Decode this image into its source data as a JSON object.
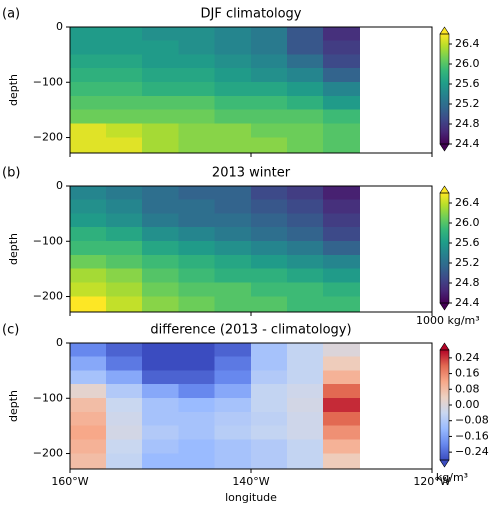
{
  "chart_data": [
    {
      "type": "heatmap",
      "panel_label": "(a)",
      "title": "DJF climatology",
      "ylabel": "depth",
      "colormap": "viridis",
      "x_edges": [
        -160,
        -156,
        -152,
        -148,
        -144,
        -140,
        -136,
        -132,
        -128
      ],
      "y_edges": [
        0,
        -25,
        -50,
        -75,
        -100,
        -125,
        -150,
        -175,
        -200,
        -228
      ],
      "values": [
        [
          25.6,
          25.6,
          25.5,
          25.5,
          25.4,
          25.3,
          25.0,
          24.7
        ],
        [
          25.6,
          25.6,
          25.6,
          25.5,
          25.4,
          25.3,
          25.0,
          24.8
        ],
        [
          25.7,
          25.7,
          25.6,
          25.6,
          25.5,
          25.4,
          25.2,
          24.9
        ],
        [
          25.8,
          25.8,
          25.7,
          25.7,
          25.6,
          25.5,
          25.4,
          25.1
        ],
        [
          25.9,
          25.9,
          25.8,
          25.8,
          25.7,
          25.7,
          25.6,
          25.4
        ],
        [
          26.0,
          26.0,
          26.0,
          26.0,
          25.9,
          25.9,
          25.8,
          25.6
        ],
        [
          26.1,
          26.1,
          26.1,
          26.1,
          26.0,
          26.0,
          26.0,
          25.9
        ],
        [
          26.5,
          26.4,
          26.3,
          26.2,
          26.2,
          26.1,
          26.1,
          26.0
        ],
        [
          26.5,
          26.5,
          26.3,
          26.2,
          26.2,
          26.2,
          26.1,
          26.0
        ]
      ],
      "xlim": [
        -160,
        -120
      ],
      "ylim": [
        -228,
        0
      ],
      "yticks": [
        0,
        {
          "value": -100,
          "label": "−100"
        },
        {
          "value": -200,
          "label": "−200"
        }
      ],
      "colorbar": {
        "clim": [
          24.4,
          26.6
        ],
        "extend": "both",
        "ticks": [
          26.4,
          {
            "value": 26.0,
            "label": "26.0"
          },
          25.6,
          25.2,
          24.8,
          24.4
        ]
      }
    },
    {
      "type": "heatmap",
      "panel_label": "(b)",
      "title": "2013 winter",
      "ylabel": "depth",
      "colormap": "viridis",
      "x_edges": [
        -160,
        -156,
        -152,
        -148,
        -144,
        -140,
        -136,
        -132,
        -128
      ],
      "y_edges": [
        0,
        -25,
        -50,
        -75,
        -100,
        -125,
        -150,
        -175,
        -200,
        -228
      ],
      "values": [
        [
          25.4,
          25.3,
          25.2,
          25.1,
          25.1,
          24.9,
          24.8,
          24.6
        ],
        [
          25.5,
          25.4,
          25.2,
          25.2,
          25.1,
          25.0,
          24.9,
          24.7
        ],
        [
          25.6,
          25.5,
          25.3,
          25.2,
          25.2,
          25.1,
          25.0,
          24.8
        ],
        [
          25.8,
          25.7,
          25.5,
          25.4,
          25.3,
          25.2,
          25.1,
          24.9
        ],
        [
          25.9,
          25.9,
          25.7,
          25.6,
          25.5,
          25.4,
          25.3,
          25.1
        ],
        [
          26.1,
          26.0,
          25.9,
          25.8,
          25.7,
          25.6,
          25.5,
          25.4
        ],
        [
          26.3,
          26.2,
          26.0,
          25.9,
          25.8,
          25.8,
          25.7,
          25.6
        ],
        [
          26.4,
          26.3,
          26.1,
          26.0,
          26.0,
          25.9,
          25.9,
          25.8
        ],
        [
          26.6,
          26.4,
          26.2,
          26.1,
          26.0,
          26.0,
          25.9,
          25.9
        ]
      ],
      "xlim": [
        -160,
        -120
      ],
      "ylim": [
        -228,
        0
      ],
      "yticks": [
        0,
        {
          "value": -100,
          "label": "−100"
        },
        {
          "value": -200,
          "label": "−200"
        }
      ],
      "colorbar": {
        "clim": [
          24.4,
          26.6
        ],
        "extend": "both",
        "label": "1000 kg/m³",
        "ticks": [
          26.4,
          {
            "value": 26.0,
            "label": "26.0"
          },
          25.6,
          25.2,
          24.8,
          24.4
        ]
      }
    },
    {
      "type": "heatmap",
      "panel_label": "(c)",
      "title": "difference (2013 - climatology)",
      "ylabel": "depth",
      "xlabel": "longitude",
      "colormap": "coolwarm",
      "x_edges": [
        -160,
        -156,
        -152,
        -148,
        -144,
        -140,
        -136,
        -132,
        -128
      ],
      "y_edges": [
        0,
        -25,
        -50,
        -75,
        -100,
        -125,
        -150,
        -175,
        -200,
        -228
      ],
      "values": [
        [
          -0.2,
          -0.25,
          -0.3,
          -0.3,
          -0.25,
          -0.1,
          -0.05,
          0.0
        ],
        [
          -0.15,
          -0.22,
          -0.28,
          -0.28,
          -0.22,
          -0.1,
          -0.05,
          0.05
        ],
        [
          -0.1,
          -0.15,
          -0.25,
          -0.25,
          -0.2,
          -0.08,
          -0.05,
          0.1
        ],
        [
          0.02,
          -0.08,
          -0.15,
          -0.2,
          -0.15,
          -0.05,
          -0.03,
          0.2
        ],
        [
          0.08,
          -0.04,
          -0.1,
          -0.12,
          -0.1,
          -0.05,
          -0.02,
          0.25
        ],
        [
          0.1,
          -0.03,
          -0.1,
          -0.1,
          -0.08,
          -0.06,
          -0.03,
          0.2
        ],
        [
          0.12,
          -0.02,
          -0.08,
          -0.1,
          -0.07,
          -0.05,
          -0.03,
          0.15
        ],
        [
          0.1,
          -0.04,
          -0.1,
          -0.12,
          -0.1,
          -0.08,
          -0.05,
          0.1
        ],
        [
          0.08,
          -0.05,
          -0.12,
          -0.12,
          -0.1,
          -0.08,
          -0.05,
          0.05
        ]
      ],
      "xlim": [
        -160,
        -120
      ],
      "ylim": [
        -228,
        0
      ],
      "xticks": [
        {
          "value": -160,
          "label": "160°W"
        },
        {
          "value": -140,
          "label": "140°W"
        },
        {
          "value": -120,
          "label": "120°W"
        }
      ],
      "yticks": [
        0,
        {
          "value": -100,
          "label": "−100"
        },
        {
          "value": -200,
          "label": "−200"
        }
      ],
      "colorbar": {
        "clim": [
          -0.28,
          0.28
        ],
        "extend": "both",
        "label": "kg/m³",
        "ticks": [
          0.24,
          0.16,
          0.08,
          {
            "value": 0,
            "label": "0.00"
          },
          {
            "value": -0.08,
            "label": "−0.08"
          },
          {
            "value": -0.16,
            "label": "−0.16"
          },
          {
            "value": -0.24,
            "label": "−0.24"
          }
        ]
      }
    }
  ]
}
